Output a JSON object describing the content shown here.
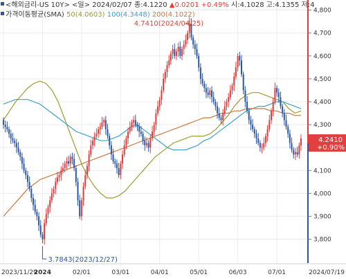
{
  "header": {
    "row1_prefix": "<해외금리-US 10Y>",
    "row1_period": "<일>",
    "row1_date": "2024/02/07",
    "row1_close": "종:4.1220",
    "row1_change": "▲0.0201",
    "row1_pct": "+0.49%",
    "row1_open": "시:4.1028",
    "row1_high": "고:4.1355",
    "row1_low": "저:4",
    "row2_title": "가격이동평균(SMA)",
    "ma50": "50(4.0603)",
    "ma100": "100(4.3448)",
    "ma200": "200(4.1022)"
  },
  "annotations": {
    "high": "4.7410(2024/04/25)",
    "low": "3.7843(2023/12/27)",
    "last_price": "4.2410",
    "last_pct": "+0.90%"
  },
  "colors": {
    "up": "#e23b3b",
    "down": "#2b56a8",
    "ma50": "#9c9c2e",
    "ma100": "#3aa0c8",
    "ma200": "#c8763c",
    "price_tag": "#e04040",
    "axis_red": "#e23b3b",
    "axis_blue": "#2b56a8"
  },
  "chart_data": {
    "type": "candlestick",
    "ylim": [
      3.72,
      4.82
    ],
    "y_ticks": [
      {
        "value": 4.8,
        "label": "4,800"
      },
      {
        "value": 4.7,
        "label": "4,700"
      },
      {
        "value": 4.6,
        "label": "4,600"
      },
      {
        "value": 4.5,
        "label": "4,500"
      },
      {
        "value": 4.4,
        "label": "4,400"
      },
      {
        "value": 4.3,
        "label": "4,300"
      },
      {
        "value": 4.2,
        "label": "4,200"
      },
      {
        "value": 4.1,
        "label": "4,100"
      },
      {
        "value": 4.0,
        "label": "4,000"
      },
      {
        "value": 3.9,
        "label": "3,900"
      },
      {
        "value": 3.8,
        "label": "3,800"
      }
    ],
    "x_ticks": [
      {
        "index": 0,
        "label": "2023/11/29"
      },
      {
        "index": 21,
        "label": "2024"
      },
      {
        "index": 42,
        "label": "02/01"
      },
      {
        "index": 63,
        "label": "03/01"
      },
      {
        "index": 84,
        "label": "04/01"
      },
      {
        "index": 105,
        "label": "05/01"
      },
      {
        "index": 126,
        "label": "06/03"
      },
      {
        "index": 147,
        "label": "07/01"
      },
      {
        "index": 160,
        "label": "2024/07/19"
      }
    ],
    "close": [
      4.3,
      4.29,
      4.28,
      4.26,
      4.24,
      4.23,
      4.22,
      4.2,
      4.18,
      4.16,
      4.13,
      4.1,
      4.08,
      4.05,
      4.02,
      3.98,
      3.95,
      3.92,
      3.9,
      3.86,
      3.82,
      3.8,
      3.87,
      3.91,
      3.94,
      3.97,
      4.0,
      4.02,
      4.05,
      4.07,
      4.08,
      4.1,
      4.11,
      4.13,
      4.14,
      4.13,
      4.16,
      4.15,
      4.11,
      4.05,
      3.97,
      3.9,
      3.97,
      4.03,
      4.08,
      4.12,
      4.17,
      4.21,
      4.23,
      4.25,
      4.26,
      4.28,
      4.29,
      4.31,
      4.32,
      4.28,
      4.25,
      4.21,
      4.17,
      4.14,
      4.13,
      4.11,
      4.08,
      4.13,
      4.17,
      4.21,
      4.24,
      4.27,
      4.29,
      4.31,
      4.32,
      4.3,
      4.29,
      4.27,
      4.26,
      4.23,
      4.21,
      4.22,
      4.2,
      4.24,
      4.27,
      4.3,
      4.35,
      4.38,
      4.41,
      4.45,
      4.5,
      4.53,
      4.56,
      4.58,
      4.61,
      4.63,
      4.6,
      4.62,
      4.64,
      4.6,
      4.63,
      4.65,
      4.67,
      4.7,
      4.74,
      4.68,
      4.65,
      4.63,
      4.6,
      4.55,
      4.5,
      4.48,
      4.46,
      4.44,
      4.43,
      4.45,
      4.42,
      4.4,
      4.38,
      4.35,
      4.33,
      4.32,
      4.35,
      4.38,
      4.4,
      4.42,
      4.45,
      4.47,
      4.51,
      4.55,
      4.6,
      4.58,
      4.52,
      4.45,
      4.4,
      4.36,
      4.32,
      4.3,
      4.28,
      4.26,
      4.24,
      4.22,
      4.2,
      4.2,
      4.22,
      4.25,
      4.28,
      4.32,
      4.36,
      4.4,
      4.46,
      4.44,
      4.42,
      4.38,
      4.35,
      4.32,
      4.29,
      4.26,
      4.22,
      4.19,
      4.17,
      4.18,
      4.17,
      4.21,
      4.24
    ],
    "series": [
      {
        "name": "50",
        "values": [
          4.32,
          4.36,
          4.4,
          4.43,
          4.46,
          4.48,
          4.49,
          4.48,
          4.45,
          4.4,
          4.33,
          4.26,
          4.19,
          4.12,
          4.07,
          4.03,
          4.0,
          3.98,
          3.98,
          3.99,
          4.01,
          4.04,
          4.07,
          4.1,
          4.13,
          4.16,
          4.18,
          4.2,
          4.22,
          4.23,
          4.24,
          4.25,
          4.25,
          4.25,
          4.26,
          4.28,
          4.31,
          4.34,
          4.38,
          4.41,
          4.43,
          4.44,
          4.44,
          4.43,
          4.42,
          4.41,
          4.4,
          4.37,
          4.35,
          4.36
        ]
      },
      {
        "name": "100",
        "values": [
          4.39,
          4.4,
          4.41,
          4.41,
          4.41,
          4.4,
          4.39,
          4.37,
          4.35,
          4.33,
          4.31,
          4.29,
          4.27,
          4.26,
          4.25,
          4.24,
          4.23,
          4.23,
          4.24,
          4.25,
          4.27,
          4.29,
          4.3,
          4.28,
          4.26,
          4.24,
          4.22,
          4.2,
          4.19,
          4.19,
          4.19,
          4.2,
          4.21,
          4.23,
          4.24,
          4.26,
          4.28,
          4.3,
          4.32,
          4.34,
          4.36,
          4.37,
          4.38,
          4.38,
          4.39,
          4.4,
          4.4,
          4.39,
          4.38,
          4.37
        ]
      },
      {
        "name": "200",
        "values": [
          3.9,
          3.93,
          3.96,
          3.99,
          4.02,
          4.04,
          4.06,
          4.07,
          4.08,
          4.09,
          4.1,
          4.11,
          4.12,
          4.13,
          4.14,
          4.15,
          4.16,
          4.17,
          4.18,
          4.19,
          4.2,
          4.21,
          4.22,
          4.23,
          4.24,
          4.25,
          4.26,
          4.27,
          4.28,
          4.29,
          4.3,
          4.31,
          4.32,
          4.33,
          4.33,
          4.34,
          4.35,
          4.35,
          4.36,
          4.36,
          4.37,
          4.37,
          4.37,
          4.37,
          4.36,
          4.36,
          4.35,
          4.35,
          4.34,
          4.34
        ]
      }
    ]
  }
}
